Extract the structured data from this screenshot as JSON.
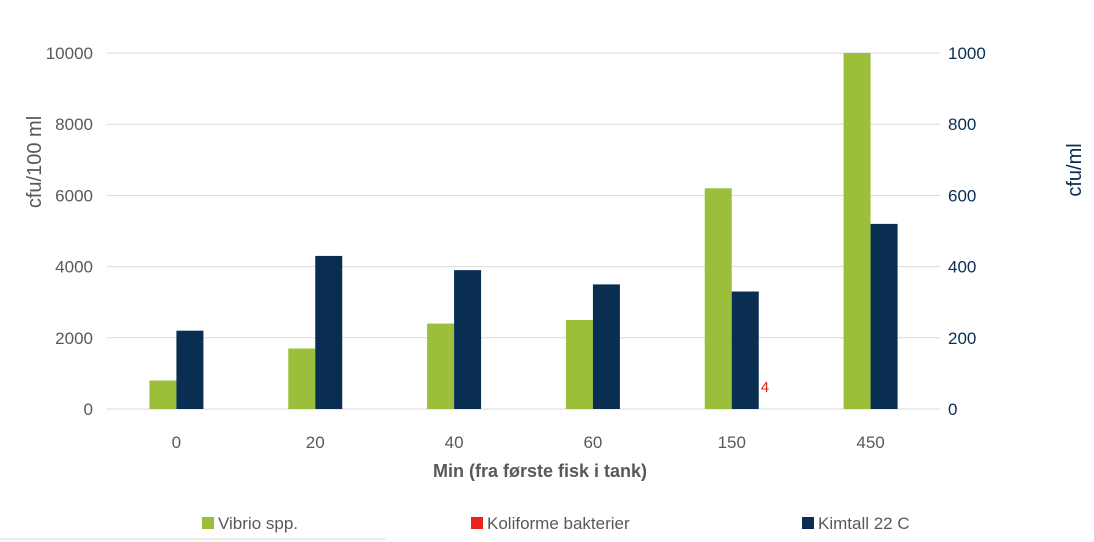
{
  "chart_data": {
    "type": "bar",
    "xlabel": "Min (fra første fisk i tank)",
    "ylabel_left": "cfu/100 ml",
    "ylabel_right": "cfu/ml",
    "categories": [
      "0",
      "20",
      "40",
      "60",
      "150",
      "450"
    ],
    "y_left": {
      "range": [
        0,
        10000
      ],
      "ticks": [
        "0",
        "2000",
        "4000",
        "6000",
        "8000",
        "10000"
      ]
    },
    "y_right": {
      "range": [
        0,
        1000
      ],
      "ticks": [
        "0",
        "200",
        "400",
        "600",
        "800",
        "1000"
      ]
    },
    "grid": true,
    "legend_position": "bottom",
    "series": [
      {
        "name": "Vibrio spp.",
        "axis": "left",
        "color": "#9bbf3b",
        "values": [
          800,
          1700,
          2400,
          2500,
          6200,
          10000
        ]
      },
      {
        "name": "Koliforme bakterier",
        "axis": "left",
        "color": "#e8231c",
        "values": [
          null,
          null,
          null,
          null,
          4,
          null
        ]
      },
      {
        "name": "Kimtall 22 C",
        "axis": "right",
        "color": "#0a2d52",
        "values": [
          220,
          430,
          390,
          350,
          330,
          520
        ]
      }
    ],
    "data_labels": [
      {
        "series": "Koliforme bakterier",
        "category": "150",
        "text": "4",
        "color": "#e8231c"
      }
    ]
  }
}
